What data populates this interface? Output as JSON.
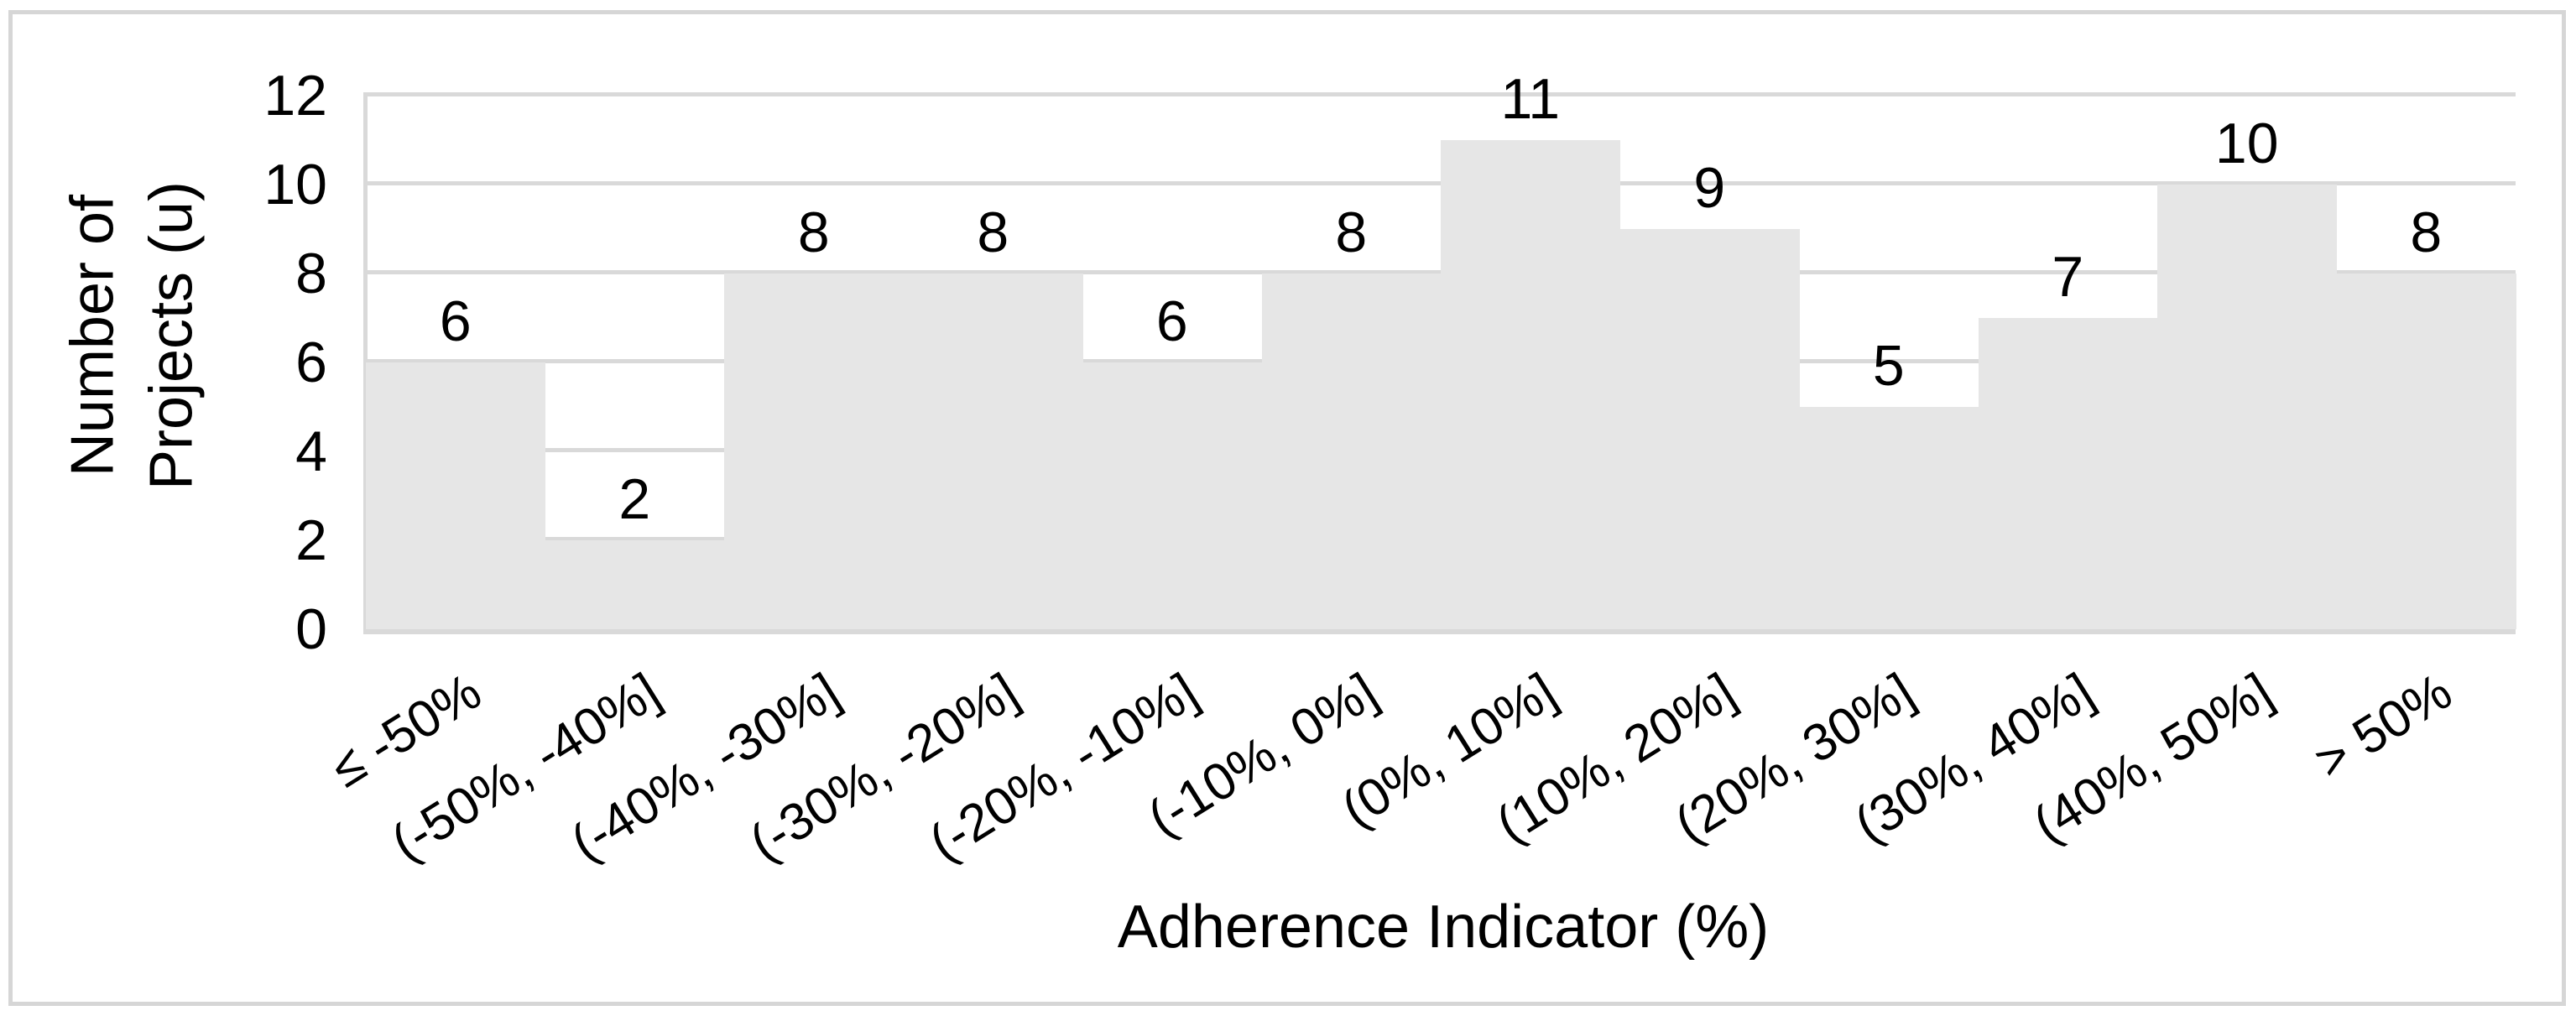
{
  "figure": {
    "background_color": "#ffffff",
    "border_color": "#d6d6d6",
    "text_color": "#000000"
  },
  "chart_data": {
    "type": "bar",
    "title": "",
    "xlabel": "Adherence Indicator (%)",
    "ylabel": "Number of\nProjects (u)",
    "categories": [
      "≤ -50%",
      "(-50%, -40%]",
      "(-40%, -30%]",
      "(-30%, -20%]",
      "(-20%, -10%]",
      "(-10%, 0%]",
      "(0%, 10%]",
      "(10%, 20%]",
      "(20%, 30%]",
      "(30%, 40%]",
      "(40%, 50%]",
      "> 50%"
    ],
    "values": [
      6,
      2,
      8,
      8,
      6,
      8,
      11,
      9,
      5,
      7,
      10,
      8
    ],
    "data_labels": [
      "6",
      "2",
      "8",
      "8",
      "6",
      "8",
      "11",
      "9",
      "5",
      "7",
      "10",
      "8"
    ],
    "ylim": [
      0,
      12
    ],
    "yticks": [
      0,
      2,
      4,
      6,
      8,
      10,
      12
    ],
    "grid": true,
    "legend": "none",
    "bar_gap_percent": 0,
    "x_tick_rotation_deg": -32,
    "bar_color": "#e6e6e6",
    "gridline_color": "#d9d9d9",
    "axis_line_color": "#d9d9d9"
  }
}
